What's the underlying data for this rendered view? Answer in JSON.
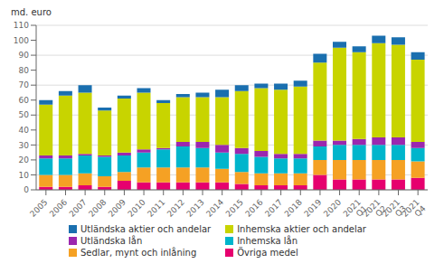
{
  "chart_data": {
    "type": "bar",
    "stacked": true,
    "ylabel": "md. euro",
    "categories": [
      "2005",
      "2006",
      "2007",
      "2008",
      "2009",
      "2010",
      "2011",
      "2012",
      "2013",
      "2014",
      "2015",
      "2016",
      "2017",
      "2018",
      "2019",
      "2020",
      "2021\nQ1",
      "2021\nQ2",
      "2021\nQ3",
      "2021\nQ4"
    ],
    "series": [
      {
        "name": "Övriga medel",
        "color": "#e6006e",
        "values": [
          2,
          2,
          3,
          2,
          6,
          5,
          5,
          5,
          5,
          5,
          4,
          3,
          3,
          3,
          10,
          7,
          7,
          7,
          7,
          8
        ]
      },
      {
        "name": "Sedlar, mynt och inlåning",
        "color": "#f5a124",
        "values": [
          8,
          8,
          8,
          7,
          6,
          10,
          10,
          10,
          10,
          9,
          8,
          8,
          8,
          8,
          10,
          13,
          13,
          13,
          13,
          11
        ]
      },
      {
        "name": "Inhemska lån",
        "color": "#00b5cc",
        "values": [
          11,
          11,
          12,
          13,
          11,
          10,
          12,
          14,
          13,
          11,
          12,
          11,
          10,
          10,
          9,
          10,
          10,
          10,
          10,
          9
        ]
      },
      {
        "name": "Utländska lån",
        "color": "#9b27af",
        "values": [
          2,
          2,
          1,
          1,
          2,
          2,
          1,
          3,
          4,
          5,
          4,
          4,
          3,
          3,
          4,
          3,
          4,
          5,
          5,
          4
        ]
      },
      {
        "name": "Inhemska aktier och andelar",
        "color": "#c8d400",
        "values": [
          34,
          40,
          41,
          30,
          36,
          38,
          30,
          30,
          30,
          32,
          38,
          42,
          43,
          45,
          52,
          62,
          58,
          63,
          62,
          55
        ]
      },
      {
        "name": "Utländska aktier och andelar",
        "color": "#1a6faf",
        "values": [
          3,
          3,
          5,
          2,
          2,
          3,
          2,
          2,
          3,
          5,
          4,
          3,
          4,
          4,
          6,
          4,
          4,
          5,
          5,
          5
        ]
      }
    ],
    "ylim": [
      0,
      110
    ],
    "yticks": [
      0,
      10,
      20,
      30,
      40,
      50,
      60,
      70,
      80,
      90,
      100,
      110
    ],
    "grid": true,
    "legend": "bottom"
  }
}
